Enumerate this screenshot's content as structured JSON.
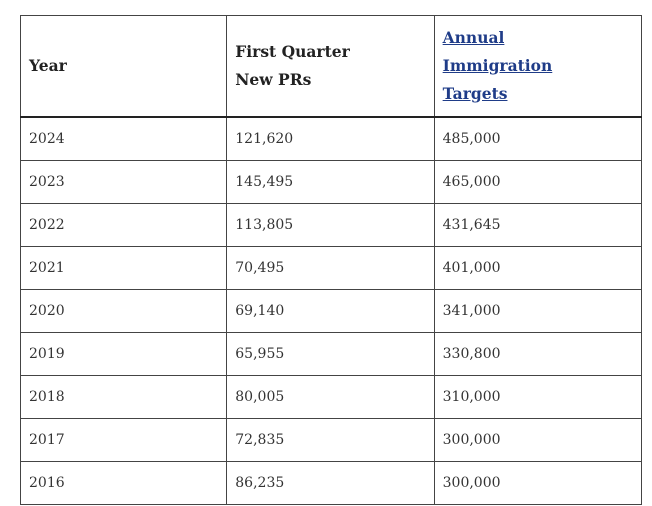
{
  "table": {
    "headers": {
      "year": "Year",
      "first_quarter": [
        "First Quarter",
        "New PRs"
      ],
      "annual_targets": [
        "Annual",
        "Immigration",
        "Targets"
      ]
    },
    "rows": [
      {
        "year": "2024",
        "first_quarter": "121,620",
        "annual": "485,000"
      },
      {
        "year": "2023",
        "first_quarter": "145,495",
        "annual": "465,000"
      },
      {
        "year": "2022",
        "first_quarter": "113,805",
        "annual": "431,645"
      },
      {
        "year": "2021",
        "first_quarter": "70,495",
        "annual": "401,000"
      },
      {
        "year": "2020",
        "first_quarter": "69,140",
        "annual": "341,000"
      },
      {
        "year": "2019",
        "first_quarter": "65,955",
        "annual": "330,800"
      },
      {
        "year": "2018",
        "first_quarter": "80,005",
        "annual": "310,000"
      },
      {
        "year": "2017",
        "first_quarter": "72,835",
        "annual": "300,000"
      },
      {
        "year": "2016",
        "first_quarter": "86,235",
        "annual": "300,000"
      }
    ]
  },
  "colors": {
    "link": "#1f3c88",
    "border": "#444444",
    "text": "#333333"
  }
}
